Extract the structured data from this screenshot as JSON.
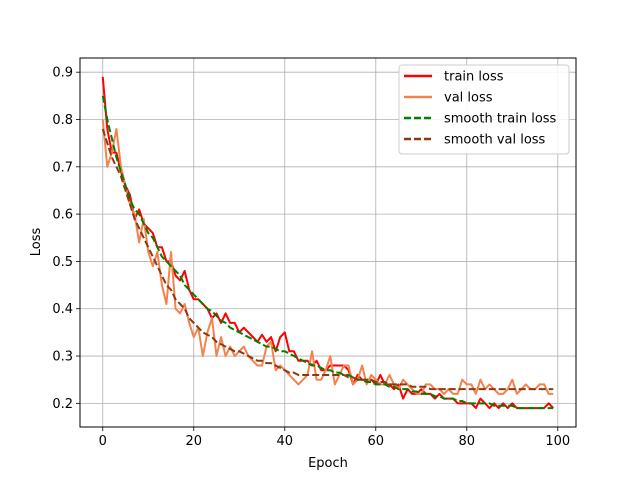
{
  "chart_data": {
    "type": "line",
    "xlabel": "Epoch",
    "ylabel": "Loss",
    "xlim": [
      -5,
      104
    ],
    "ylim": [
      0.15,
      0.93
    ],
    "x_ticks": [
      0,
      20,
      40,
      60,
      80,
      100
    ],
    "y_ticks": [
      0.2,
      0.3,
      0.4,
      0.5,
      0.6,
      0.7,
      0.8,
      0.9
    ],
    "x_tick_labels": [
      "0",
      "20",
      "40",
      "60",
      "80",
      "100"
    ],
    "y_tick_labels": [
      "0.2",
      "0.3",
      "0.4",
      "0.5",
      "0.6",
      "0.7",
      "0.8",
      "0.9"
    ],
    "grid": true,
    "legend_position": "top-right",
    "x": [
      0,
      1,
      2,
      3,
      4,
      5,
      6,
      7,
      8,
      9,
      10,
      11,
      12,
      13,
      14,
      15,
      16,
      17,
      18,
      19,
      20,
      21,
      22,
      23,
      24,
      25,
      26,
      27,
      28,
      29,
      30,
      31,
      32,
      33,
      34,
      35,
      36,
      37,
      38,
      39,
      40,
      41,
      42,
      43,
      44,
      45,
      46,
      47,
      48,
      49,
      50,
      51,
      52,
      53,
      54,
      55,
      56,
      57,
      58,
      59,
      60,
      61,
      62,
      63,
      64,
      65,
      66,
      67,
      68,
      69,
      70,
      71,
      72,
      73,
      74,
      75,
      76,
      77,
      78,
      79,
      80,
      81,
      82,
      83,
      84,
      85,
      86,
      87,
      88,
      89,
      90,
      91,
      92,
      93,
      94,
      95,
      96,
      97,
      98,
      99
    ],
    "series": [
      {
        "name": "train loss",
        "color": "#ff0000",
        "style": "solid",
        "values": [
          0.89,
          0.78,
          0.73,
          0.73,
          0.69,
          0.66,
          0.64,
          0.59,
          0.61,
          0.58,
          0.57,
          0.56,
          0.53,
          0.53,
          0.5,
          0.5,
          0.47,
          0.46,
          0.48,
          0.44,
          0.42,
          0.42,
          0.41,
          0.4,
          0.38,
          0.39,
          0.37,
          0.39,
          0.37,
          0.37,
          0.35,
          0.36,
          0.35,
          0.34,
          0.33,
          0.345,
          0.33,
          0.34,
          0.31,
          0.34,
          0.35,
          0.31,
          0.31,
          0.29,
          0.29,
          0.29,
          0.28,
          0.29,
          0.27,
          0.27,
          0.28,
          0.28,
          0.28,
          0.28,
          0.27,
          0.24,
          0.26,
          0.25,
          0.25,
          0.25,
          0.24,
          0.26,
          0.24,
          0.24,
          0.23,
          0.24,
          0.21,
          0.23,
          0.22,
          0.22,
          0.23,
          0.22,
          0.22,
          0.21,
          0.22,
          0.21,
          0.21,
          0.21,
          0.2,
          0.2,
          0.2,
          0.2,
          0.19,
          0.21,
          0.2,
          0.19,
          0.2,
          0.19,
          0.2,
          0.19,
          0.2,
          0.19,
          0.19,
          0.19,
          0.19,
          0.19,
          0.19,
          0.19,
          0.2,
          0.19
        ]
      },
      {
        "name": "val loss",
        "color": "#f4824f",
        "style": "solid",
        "values": [
          0.8,
          0.7,
          0.73,
          0.78,
          0.7,
          0.66,
          0.62,
          0.6,
          0.54,
          0.59,
          0.52,
          0.49,
          0.52,
          0.45,
          0.41,
          0.52,
          0.4,
          0.39,
          0.41,
          0.37,
          0.34,
          0.36,
          0.3,
          0.35,
          0.38,
          0.3,
          0.34,
          0.3,
          0.32,
          0.3,
          0.31,
          0.32,
          0.3,
          0.29,
          0.28,
          0.28,
          0.32,
          0.33,
          0.27,
          0.28,
          0.27,
          0.26,
          0.25,
          0.24,
          0.25,
          0.26,
          0.31,
          0.25,
          0.25,
          0.27,
          0.3,
          0.24,
          0.26,
          0.28,
          0.28,
          0.24,
          0.25,
          0.28,
          0.24,
          0.26,
          0.25,
          0.24,
          0.24,
          0.26,
          0.24,
          0.23,
          0.25,
          0.24,
          0.23,
          0.22,
          0.22,
          0.24,
          0.24,
          0.23,
          0.23,
          0.22,
          0.23,
          0.22,
          0.22,
          0.25,
          0.24,
          0.24,
          0.22,
          0.25,
          0.23,
          0.24,
          0.23,
          0.22,
          0.22,
          0.23,
          0.25,
          0.22,
          0.23,
          0.24,
          0.23,
          0.23,
          0.24,
          0.24,
          0.22,
          0.22
        ]
      },
      {
        "name": "smooth train loss",
        "color": "#008000",
        "style": "dashed",
        "values": [
          0.85,
          0.8,
          0.76,
          0.72,
          0.69,
          0.66,
          0.63,
          0.61,
          0.6,
          0.58,
          0.56,
          0.55,
          0.53,
          0.51,
          0.5,
          0.49,
          0.48,
          0.47,
          0.45,
          0.44,
          0.43,
          0.42,
          0.41,
          0.4,
          0.395,
          0.385,
          0.375,
          0.37,
          0.36,
          0.355,
          0.35,
          0.345,
          0.34,
          0.335,
          0.33,
          0.325,
          0.32,
          0.32,
          0.315,
          0.31,
          0.31,
          0.305,
          0.3,
          0.295,
          0.29,
          0.285,
          0.28,
          0.28,
          0.275,
          0.27,
          0.27,
          0.265,
          0.265,
          0.26,
          0.26,
          0.255,
          0.25,
          0.25,
          0.245,
          0.245,
          0.24,
          0.24,
          0.24,
          0.235,
          0.235,
          0.23,
          0.23,
          0.23,
          0.225,
          0.225,
          0.22,
          0.22,
          0.22,
          0.215,
          0.215,
          0.21,
          0.21,
          0.21,
          0.205,
          0.205,
          0.2,
          0.2,
          0.2,
          0.2,
          0.2,
          0.2,
          0.195,
          0.195,
          0.195,
          0.195,
          0.195,
          0.19,
          0.19,
          0.19,
          0.19,
          0.19,
          0.19,
          0.19,
          0.19,
          0.19
        ]
      },
      {
        "name": "smooth val loss",
        "color": "#8b3a0f",
        "style": "dashed",
        "values": [
          0.78,
          0.75,
          0.72,
          0.7,
          0.68,
          0.65,
          0.62,
          0.59,
          0.57,
          0.55,
          0.53,
          0.51,
          0.49,
          0.47,
          0.45,
          0.44,
          0.42,
          0.41,
          0.4,
          0.38,
          0.37,
          0.36,
          0.35,
          0.345,
          0.34,
          0.33,
          0.325,
          0.32,
          0.315,
          0.31,
          0.31,
          0.305,
          0.3,
          0.295,
          0.29,
          0.29,
          0.285,
          0.285,
          0.28,
          0.275,
          0.27,
          0.265,
          0.265,
          0.26,
          0.26,
          0.26,
          0.26,
          0.26,
          0.26,
          0.26,
          0.26,
          0.26,
          0.26,
          0.26,
          0.255,
          0.255,
          0.25,
          0.25,
          0.25,
          0.25,
          0.245,
          0.245,
          0.245,
          0.24,
          0.24,
          0.24,
          0.24,
          0.24,
          0.235,
          0.235,
          0.235,
          0.235,
          0.23,
          0.23,
          0.23,
          0.23,
          0.23,
          0.23,
          0.23,
          0.23,
          0.23,
          0.23,
          0.23,
          0.23,
          0.23,
          0.23,
          0.23,
          0.23,
          0.23,
          0.23,
          0.23,
          0.23,
          0.23,
          0.23,
          0.23,
          0.23,
          0.23,
          0.23,
          0.23,
          0.23
        ]
      }
    ]
  }
}
